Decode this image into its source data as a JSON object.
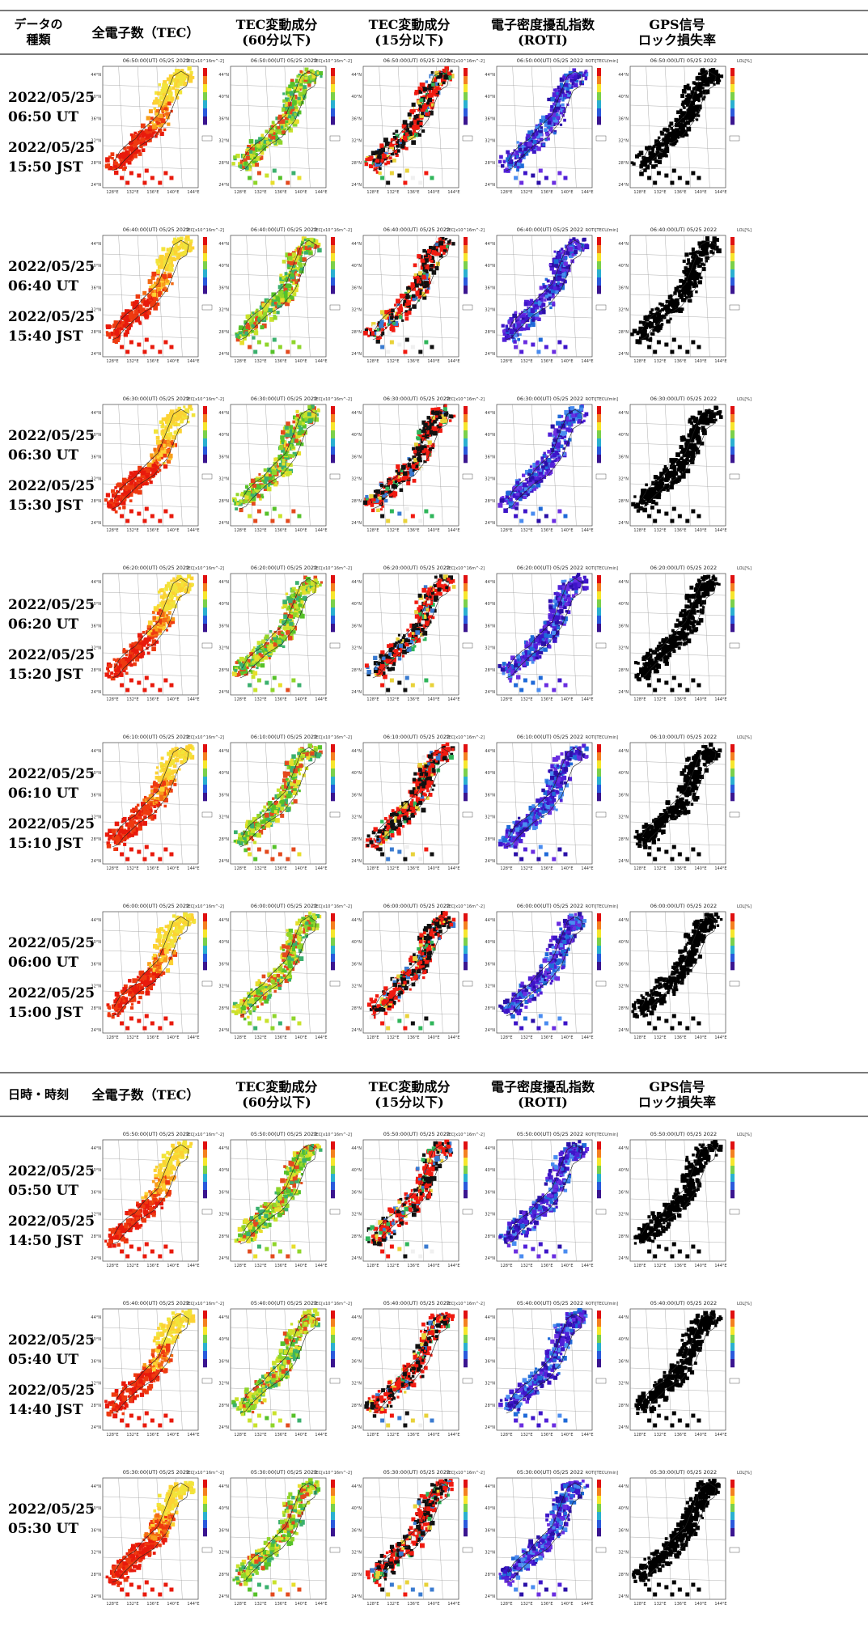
{
  "headers": [
    {
      "left": "データの\n種類",
      "cols": [
        "全電子数（TEC）",
        "TEC変動成分\n(60分以下)",
        "TEC変動成分\n(15分以下)",
        "電子密度擾乱指数\n(ROTI)",
        "GPS信号\nロック損失率"
      ]
    },
    {
      "left": "日時・時刻",
      "cols": [
        "全電子数（TEC）",
        "TEC変動成分\n(60分以下)",
        "TEC変動成分\n(15分以下)",
        "電子密度擾乱指数\n(ROTI)",
        "GPS信号\nロック損失率"
      ]
    }
  ],
  "rows": [
    {
      "ut": "2022/05/25\n06:50 UT",
      "jst": "2022/05/25\n15:50 JST",
      "map_title": "06:50:00(UT) 05/25 2022"
    },
    {
      "ut": "2022/05/25\n06:40 UT",
      "jst": "2022/05/25\n15:40 JST",
      "map_title": "06:40:00(UT) 05/25 2022"
    },
    {
      "ut": "2022/05/25\n06:30 UT",
      "jst": "2022/05/25\n15:30 JST",
      "map_title": "06:30:00(UT) 05/25 2022"
    },
    {
      "ut": "2022/05/25\n06:20 UT",
      "jst": "2022/05/25\n15:20 JST",
      "map_title": "06:20:00(UT) 05/25 2022"
    },
    {
      "ut": "2022/05/25\n06:10 UT",
      "jst": "2022/05/25\n15:10 JST",
      "map_title": "06:10:00(UT) 05/25 2022"
    },
    {
      "ut": "2022/05/25\n06:00 UT",
      "jst": "2022/05/25\n15:00 JST",
      "map_title": "06:00:00(UT) 05/25 2022"
    },
    {
      "ut": "2022/05/25\n05:50 UT",
      "jst": "2022/05/25\n14:50 JST",
      "map_title": "05:50:00(UT) 05/25 2022"
    },
    {
      "ut": "2022/05/25\n05:40 UT",
      "jst": "2022/05/25\n14:40 JST",
      "map_title": "05:40:00(UT) 05/25 2022"
    },
    {
      "ut": "2022/05/25\n05:30 UT",
      "jst": "",
      "map_title": "05:30:00(UT) 05/25 2022"
    }
  ],
  "map": {
    "lat_ticks": [
      "44°N",
      "40°N",
      "36°N",
      "32°N",
      "28°N",
      "24°N"
    ],
    "lon_ticks": [
      "128°E",
      "132°E",
      "136°E",
      "140°E",
      "144°E"
    ],
    "colorbar_units": [
      "TEC[x10^16m^-2]",
      "TEC[x10^16m^-2]",
      "TEC[x10^16m^-2]",
      "ROTI[TECU/min]",
      "LOL[%]"
    ]
  },
  "palettes": {
    "tec": [
      "#e81a0c",
      "#ee3a10",
      "#f36a14",
      "#f89e1c",
      "#fcd233",
      "#f2e43a"
    ],
    "det60": [
      "#56c12a",
      "#8fd52b",
      "#c9e22c",
      "#e7de2c",
      "#e34a1e",
      "#3bb06e"
    ],
    "det15": [
      "#f01a10",
      "#101010",
      "#3a7bd0",
      "#2fb55a",
      "#e8d23a",
      "#f0f0f0"
    ],
    "roti": [
      "#3d15c8",
      "#5120d8",
      "#2b10a8",
      "#6a2ee0",
      "#1f6ad8",
      "#4a8cf0"
    ],
    "lol": [
      "#000000"
    ],
    "colorbar_spectrum": [
      "#e01010",
      "#f48020",
      "#f6e62c",
      "#7ad04a",
      "#2ab0d0",
      "#2a5adc",
      "#3a1590"
    ]
  }
}
